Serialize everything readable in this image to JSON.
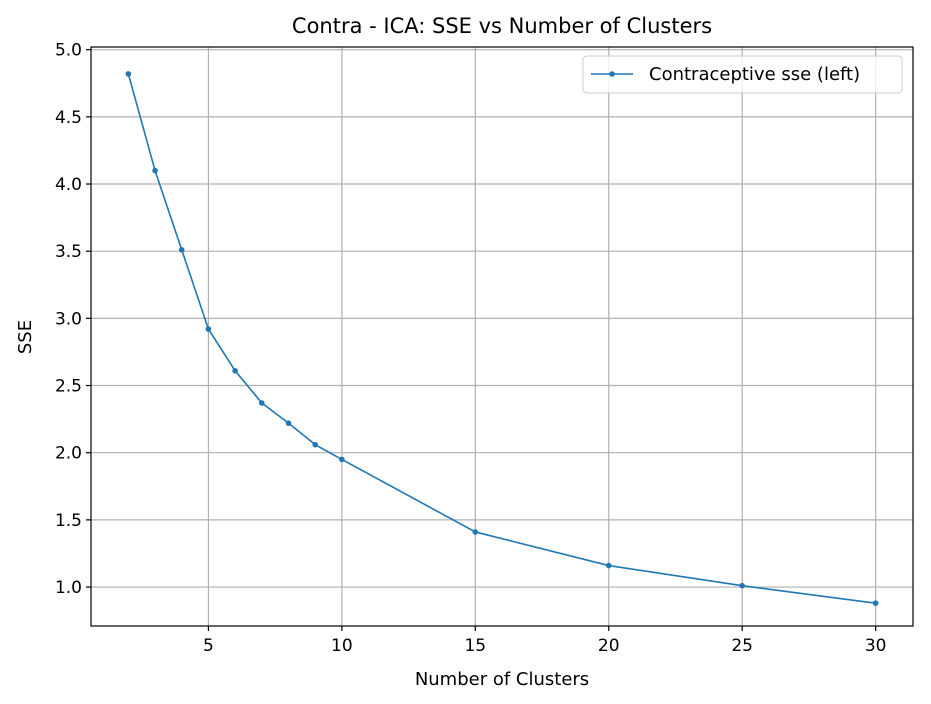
{
  "chart_data": {
    "type": "line",
    "title": "Contra - ICA: SSE vs Number of Clusters",
    "xlabel": "Number of Clusters",
    "ylabel": "SSE",
    "x": [
      2,
      3,
      4,
      5,
      6,
      7,
      8,
      9,
      10,
      15,
      20,
      25,
      30
    ],
    "series": [
      {
        "name": "Contraceptive sse (left)",
        "values": [
          4.82,
          4.1,
          3.51,
          2.92,
          2.61,
          2.37,
          2.22,
          2.06,
          1.95,
          1.41,
          1.16,
          1.01,
          0.88
        ],
        "color": "#1f77b4",
        "marker": "circle"
      }
    ],
    "xlim": [
      0.6,
      31.4
    ],
    "ylim": [
      0.71,
      5.02
    ],
    "xticks": [
      5,
      10,
      15,
      20,
      25,
      30
    ],
    "xtick_labels": [
      "5",
      "10",
      "15",
      "20",
      "25",
      "30"
    ],
    "yticks": [
      1.0,
      1.5,
      2.0,
      2.5,
      3.0,
      3.5,
      4.0,
      4.5,
      5.0
    ],
    "ytick_labels": [
      "1.0",
      "1.5",
      "2.0",
      "2.5",
      "3.0",
      "3.5",
      "4.0",
      "4.5",
      "5.0"
    ],
    "grid": true,
    "legend_position": "top-right"
  },
  "colors": {
    "line": "#1f77b4",
    "grid": "#b0b0b0",
    "axes": "#000000",
    "background": "#ffffff"
  }
}
